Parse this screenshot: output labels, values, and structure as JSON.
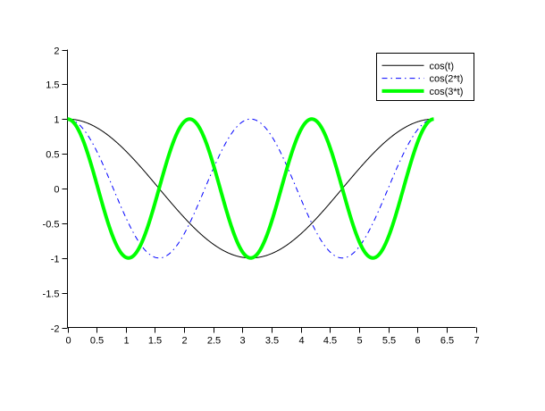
{
  "chart_data": {
    "type": "line",
    "title": "",
    "xlabel": "",
    "ylabel": "",
    "xlim": [
      0,
      7
    ],
    "ylim": [
      -2,
      2
    ],
    "xticks": [
      0,
      0.5,
      1,
      1.5,
      2,
      2.5,
      3,
      3.5,
      4,
      4.5,
      5,
      5.5,
      6,
      6.5,
      7
    ],
    "yticks": [
      -2,
      -1.5,
      -1,
      -0.5,
      0,
      0.5,
      1,
      1.5,
      2
    ],
    "x_domain": {
      "start": 0,
      "stop": 6.2832,
      "step": 0.01
    },
    "series": [
      {
        "name": "cos(t)",
        "fn": "cos",
        "freq": 1,
        "color": "#000000",
        "width": 1,
        "style": "solid"
      },
      {
        "name": "cos(2*t)",
        "fn": "cos",
        "freq": 2,
        "color": "#0000ff",
        "width": 1,
        "style": "dashdot"
      },
      {
        "name": "cos(3*t)",
        "fn": "cos",
        "freq": 3,
        "color": "#00ff00",
        "width": 4,
        "style": "solid"
      }
    ],
    "legend": {
      "position": "top-right",
      "entries": [
        "cos(t)",
        "cos(2*t)",
        "cos(3*t)"
      ]
    },
    "grid": false,
    "axis_color": "#000000",
    "background": "#ffffff"
  }
}
